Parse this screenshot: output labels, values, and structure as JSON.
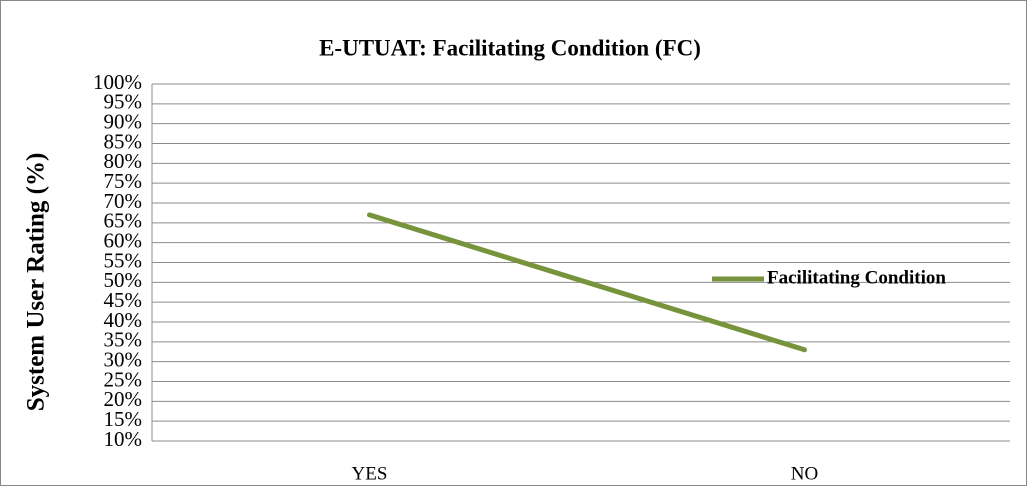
{
  "chart_data": {
    "type": "line",
    "title": "E-UTUAT: Facilitating Condition (FC)",
    "y_label": "System User Rating (%)",
    "categories": [
      "YES",
      "NO"
    ],
    "series": [
      {
        "name": "Facilitating Condition",
        "color": "#77933c",
        "values": [
          67,
          33
        ]
      }
    ],
    "ylim": [
      10,
      100
    ],
    "yticks": [
      {
        "value": 10,
        "label": "10%"
      },
      {
        "value": 15,
        "label": "15%"
      },
      {
        "value": 20,
        "label": "20%"
      },
      {
        "value": 25,
        "label": "25%"
      },
      {
        "value": 30,
        "label": "30%"
      },
      {
        "value": 35,
        "label": "35%"
      },
      {
        "value": 40,
        "label": "40%"
      },
      {
        "value": 45,
        "label": "45%"
      },
      {
        "value": 50,
        "label": "50%"
      },
      {
        "value": 55,
        "label": "55%"
      },
      {
        "value": 60,
        "label": "60%"
      },
      {
        "value": 65,
        "label": "65%"
      },
      {
        "value": 70,
        "label": "70%"
      },
      {
        "value": 75,
        "label": "75%"
      },
      {
        "value": 80,
        "label": "80%"
      },
      {
        "value": 85,
        "label": "85%"
      },
      {
        "value": 90,
        "label": "90%"
      },
      {
        "value": 95,
        "label": "95%"
      },
      {
        "value": 100,
        "label": "100%"
      }
    ],
    "grid": true,
    "legend": "right"
  }
}
